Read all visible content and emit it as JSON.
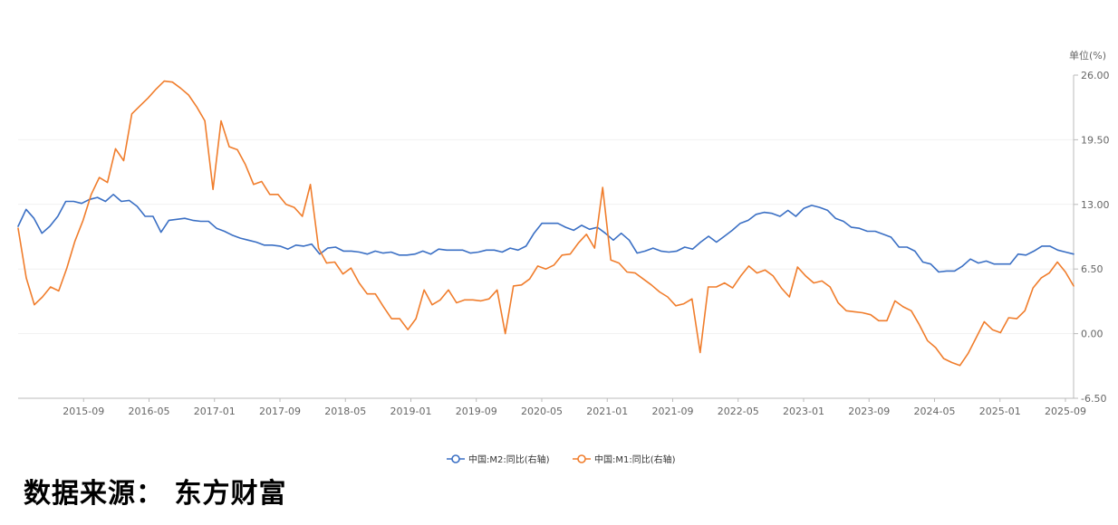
{
  "chart_data": {
    "type": "line",
    "unit_label": "单位(%)",
    "ylim": [
      -6.5,
      26.0
    ],
    "y_ticks": [
      "26.00",
      "19.50",
      "13.00",
      "6.50",
      "0.00",
      "-6.50"
    ],
    "y_tick_values": [
      26.0,
      19.5,
      13.0,
      6.5,
      0.0,
      -6.5
    ],
    "y_axis_side": "right",
    "x_start": "2015-01",
    "x_end": "2025-10",
    "x_ticks": [
      "2015-09",
      "2016-05",
      "2017-01",
      "2017-09",
      "2018-05",
      "2019-01",
      "2019-09",
      "2020-05",
      "2021-01",
      "2021-09",
      "2022-05",
      "2023-01",
      "2023-09",
      "2024-05",
      "2025-01",
      "2025-09"
    ],
    "legend_position": "bottom",
    "series": [
      {
        "name": "中国:M2:同比(右轴)",
        "color": "#3a6fc4",
        "values": [
          10.8,
          12.5,
          11.6,
          10.1,
          10.8,
          11.8,
          13.3,
          13.3,
          13.1,
          13.5,
          13.7,
          13.3,
          14.0,
          13.3,
          13.4,
          12.8,
          11.8,
          11.8,
          10.2,
          11.4,
          11.5,
          11.6,
          11.4,
          11.3,
          11.3,
          10.6,
          10.3,
          9.9,
          9.6,
          9.4,
          9.2,
          8.9,
          8.9,
          8.8,
          8.5,
          8.9,
          8.8,
          9.0,
          8.0,
          8.6,
          8.7,
          8.3,
          8.3,
          8.2,
          8.0,
          8.3,
          8.1,
          8.2,
          7.9,
          7.9,
          8.0,
          8.3,
          8.0,
          8.5,
          8.4,
          8.4,
          8.4,
          8.1,
          8.2,
          8.4,
          8.4,
          8.2,
          8.6,
          8.4,
          8.8,
          10.1,
          11.1,
          11.1,
          11.1,
          10.7,
          10.4,
          10.9,
          10.5,
          10.7,
          10.1,
          9.4,
          10.1,
          9.4,
          8.1,
          8.3,
          8.6,
          8.3,
          8.2,
          8.3,
          8.7,
          8.5,
          9.2,
          9.8,
          9.2,
          9.8,
          10.4,
          11.1,
          11.4,
          12.0,
          12.2,
          12.1,
          11.8,
          12.4,
          11.8,
          12.6,
          12.9,
          12.7,
          12.4,
          11.6,
          11.3,
          10.7,
          10.6,
          10.3,
          10.3,
          10.0,
          9.7,
          8.7,
          8.7,
          8.3,
          7.2,
          7.0,
          6.2,
          6.3,
          6.3,
          6.8,
          7.5,
          7.1,
          7.3,
          7.0,
          7.0,
          7.0,
          8.0,
          7.9,
          8.3,
          8.8,
          8.8,
          8.4,
          8.2,
          8.0
        ]
      },
      {
        "name": "中国:M1:同比(右轴)",
        "color": "#f07d2c",
        "values": [
          10.6,
          5.6,
          2.9,
          3.7,
          4.7,
          4.3,
          6.6,
          9.3,
          11.4,
          14.0,
          15.7,
          15.2,
          18.6,
          17.4,
          22.1,
          22.9,
          23.7,
          24.6,
          25.4,
          25.3,
          24.7,
          24.0,
          22.8,
          21.4,
          14.5,
          21.4,
          18.8,
          18.5,
          17.0,
          15.0,
          15.3,
          14.0,
          14.0,
          13.0,
          12.7,
          11.8,
          15.0,
          8.6,
          7.1,
          7.2,
          6.0,
          6.6,
          5.1,
          4.0,
          4.0,
          2.7,
          1.5,
          1.5,
          0.4,
          1.5,
          4.4,
          2.9,
          3.4,
          4.4,
          3.1,
          3.4,
          3.4,
          3.3,
          3.5,
          4.4,
          0.0,
          4.8,
          4.9,
          5.5,
          6.8,
          6.5,
          6.9,
          7.9,
          8.0,
          9.1,
          10.0,
          8.6,
          14.7,
          7.4,
          7.1,
          6.2,
          6.1,
          5.5,
          4.9,
          4.2,
          3.7,
          2.8,
          3.0,
          3.5,
          -1.9,
          4.7,
          4.7,
          5.1,
          4.6,
          5.8,
          6.8,
          6.1,
          6.4,
          5.8,
          4.6,
          3.7,
          6.7,
          5.8,
          5.1,
          5.3,
          4.7,
          3.1,
          2.3,
          2.2,
          2.1,
          1.9,
          1.3,
          1.3,
          3.3,
          2.7,
          2.3,
          0.9,
          -0.7,
          -1.4,
          -2.5,
          -2.9,
          -3.2,
          -2.0,
          -0.4,
          1.2,
          0.4,
          0.1,
          1.6,
          1.5,
          2.3,
          4.6,
          5.6,
          6.1,
          7.2,
          6.2,
          4.8
        ]
      }
    ]
  },
  "source_text": "数据来源： 东方财富"
}
